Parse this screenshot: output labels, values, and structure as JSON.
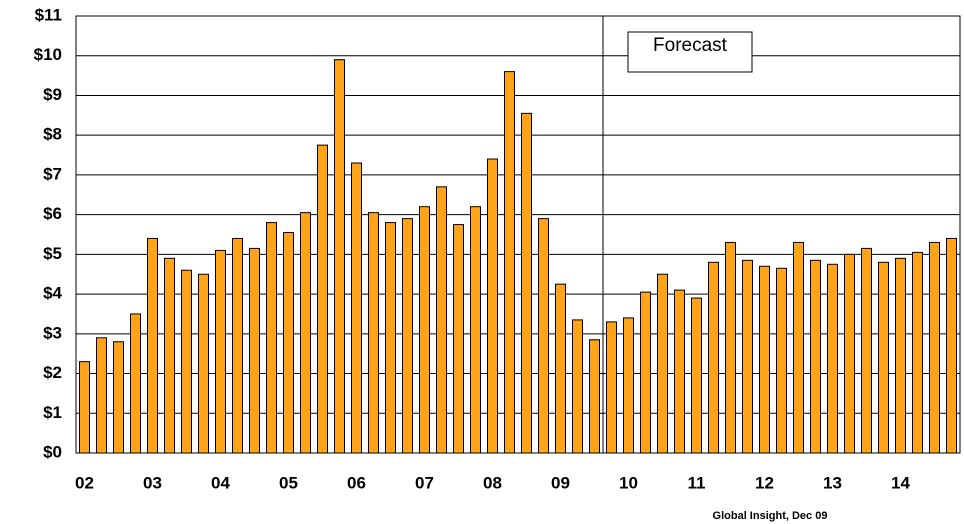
{
  "chart_data": {
    "type": "bar",
    "categories": [
      "02",
      null,
      null,
      null,
      "03",
      null,
      null,
      null,
      "04",
      null,
      null,
      null,
      "05",
      null,
      null,
      null,
      "06",
      null,
      null,
      null,
      "07",
      null,
      null,
      null,
      "08",
      null,
      null,
      null,
      "09",
      null,
      null,
      null,
      "10",
      null,
      null,
      null,
      "11",
      null,
      null,
      null,
      "12",
      null,
      null,
      null,
      "13",
      null,
      null,
      null,
      "14",
      null,
      null,
      null
    ],
    "values": [
      2.3,
      2.9,
      2.8,
      3.5,
      5.4,
      4.9,
      4.6,
      4.5,
      5.1,
      5.4,
      5.15,
      5.8,
      5.55,
      6.05,
      7.75,
      9.9,
      7.3,
      6.05,
      5.8,
      5.9,
      6.2,
      6.7,
      5.75,
      6.2,
      7.4,
      9.6,
      8.55,
      5.9,
      4.25,
      3.35,
      2.85,
      3.3,
      3.4,
      4.05,
      4.5,
      4.1,
      3.9,
      4.8,
      5.3,
      4.85,
      4.7,
      4.65,
      5.3,
      4.85,
      4.75,
      5.0,
      5.15,
      4.8,
      4.9,
      5.05,
      5.3,
      5.4
    ],
    "color": "#ffa318",
    "ylim": [
      0,
      11
    ],
    "yticks": [
      {
        "value": 0,
        "label": "$0"
      },
      {
        "value": 1,
        "label": "$1"
      },
      {
        "value": 2,
        "label": "$2"
      },
      {
        "value": 3,
        "label": "$3"
      },
      {
        "value": 4,
        "label": "$4"
      },
      {
        "value": 5,
        "label": "$5"
      },
      {
        "value": 6,
        "label": "$6"
      },
      {
        "value": 7,
        "label": "$7"
      },
      {
        "value": 8,
        "label": "$8"
      },
      {
        "value": 9,
        "label": "$9"
      },
      {
        "value": 10,
        "label": "$10"
      },
      {
        "value": 11,
        "label": "$11"
      }
    ],
    "grid": true,
    "forecast": {
      "label": "Forecast",
      "start_category": 31
    },
    "source": "Global Insight, Dec 09"
  }
}
